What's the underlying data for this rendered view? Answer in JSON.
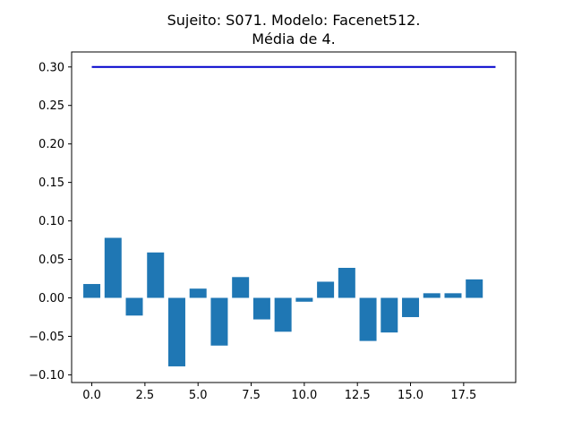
{
  "chart_data": {
    "type": "bar",
    "title_line1": "Sujeito: S071. Modelo: Facenet512.",
    "title_line2": "Média de 4.",
    "xlabel": "",
    "ylabel": "",
    "xlim": [
      -0.95,
      19.95
    ],
    "ylim": [
      -0.11,
      0.3195
    ],
    "x_ticks": [
      0.0,
      2.5,
      5.0,
      7.5,
      10.0,
      12.5,
      15.0,
      17.5
    ],
    "x_tick_labels": [
      "0.0",
      "2.5",
      "5.0",
      "7.5",
      "10.0",
      "12.5",
      "15.0",
      "17.5"
    ],
    "y_ticks": [
      -0.1,
      -0.05,
      0.0,
      0.05,
      0.1,
      0.15,
      0.2,
      0.25,
      0.3
    ],
    "y_tick_labels": [
      "−0.10",
      "−0.05",
      "0.00",
      "0.05",
      "0.10",
      "0.15",
      "0.20",
      "0.25",
      "0.30"
    ],
    "x": [
      0,
      1,
      2,
      3,
      4,
      5,
      6,
      7,
      8,
      9,
      10,
      11,
      12,
      13,
      14,
      15,
      16,
      17,
      18
    ],
    "values": [
      0.018,
      0.078,
      -0.023,
      0.059,
      -0.089,
      0.012,
      -0.062,
      0.027,
      -0.028,
      -0.044,
      -0.005,
      0.021,
      0.039,
      -0.056,
      -0.045,
      -0.025,
      0.006,
      0.006,
      0.024
    ],
    "bar_width": 0.8,
    "bar_color": "#1f77b4",
    "threshold_line": {
      "y": 0.3,
      "x_start": 0,
      "x_end": 19,
      "color": "#0000cc"
    },
    "grid": false,
    "legend": "none"
  }
}
